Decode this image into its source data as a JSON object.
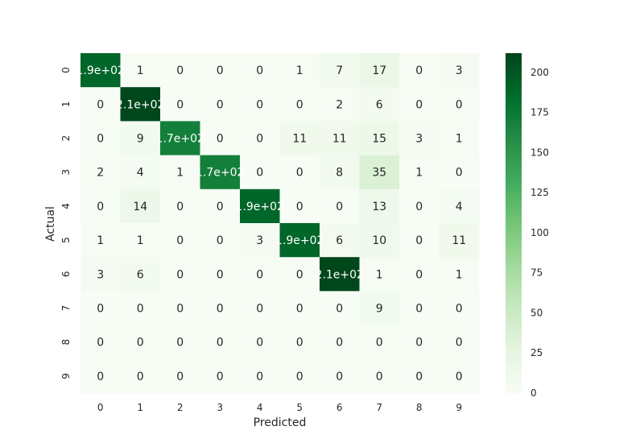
{
  "chart_data": {
    "type": "heatmap",
    "title": "",
    "xlabel": "Predicted",
    "ylabel": "Actual",
    "x_categories": [
      "0",
      "1",
      "2",
      "3",
      "4",
      "5",
      "6",
      "7",
      "8",
      "9"
    ],
    "y_categories": [
      "0",
      "1",
      "2",
      "3",
      "4",
      "5",
      "6",
      "7",
      "8",
      "9"
    ],
    "values": [
      [
        190,
        1,
        0,
        0,
        0,
        1,
        7,
        17,
        0,
        3
      ],
      [
        0,
        210,
        0,
        0,
        0,
        0,
        2,
        6,
        0,
        0
      ],
      [
        0,
        9,
        170,
        0,
        0,
        11,
        11,
        15,
        3,
        1
      ],
      [
        2,
        4,
        1,
        170,
        0,
        0,
        8,
        35,
        1,
        0
      ],
      [
        0,
        14,
        0,
        0,
        190,
        0,
        0,
        13,
        0,
        4
      ],
      [
        1,
        1,
        0,
        0,
        3,
        190,
        6,
        10,
        0,
        11
      ],
      [
        3,
        6,
        0,
        0,
        0,
        0,
        210,
        1,
        0,
        1
      ],
      [
        0,
        0,
        0,
        0,
        0,
        0,
        0,
        9,
        0,
        0
      ],
      [
        0,
        0,
        0,
        0,
        0,
        0,
        0,
        0,
        0,
        0
      ],
      [
        0,
        0,
        0,
        0,
        0,
        0,
        0,
        0,
        0,
        0
      ]
    ],
    "annotations": [
      [
        "1.9e+02",
        "1",
        "0",
        "0",
        "0",
        "1",
        "7",
        "17",
        "0",
        "3"
      ],
      [
        "0",
        "2.1e+02",
        "0",
        "0",
        "0",
        "0",
        "2",
        "6",
        "0",
        "0"
      ],
      [
        "0",
        "9",
        "1.7e+02",
        "0",
        "0",
        "11",
        "11",
        "15",
        "3",
        "1"
      ],
      [
        "2",
        "4",
        "1",
        "1.7e+02",
        "0",
        "0",
        "8",
        "35",
        "1",
        "0"
      ],
      [
        "0",
        "14",
        "0",
        "0",
        "1.9e+02",
        "0",
        "0",
        "13",
        "0",
        "4"
      ],
      [
        "1",
        "1",
        "0",
        "0",
        "3",
        "1.9e+02",
        "6",
        "10",
        "0",
        "11"
      ],
      [
        "3",
        "6",
        "0",
        "0",
        "0",
        "0",
        "2.1e+02",
        "1",
        "0",
        "1"
      ],
      [
        "0",
        "0",
        "0",
        "0",
        "0",
        "0",
        "0",
        "9",
        "0",
        "0"
      ],
      [
        "0",
        "0",
        "0",
        "0",
        "0",
        "0",
        "0",
        "0",
        "0",
        "0"
      ],
      [
        "0",
        "0",
        "0",
        "0",
        "0",
        "0",
        "0",
        "0",
        "0",
        "0"
      ]
    ],
    "vmin": 0,
    "vmax": 212,
    "colormap": "Greens",
    "colorbar_ticks": [
      0,
      25,
      50,
      75,
      100,
      125,
      150,
      175,
      200
    ],
    "colorbar_tick_labels": [
      "0",
      "25",
      "50",
      "75",
      "100",
      "125",
      "150",
      "175",
      "200"
    ]
  }
}
